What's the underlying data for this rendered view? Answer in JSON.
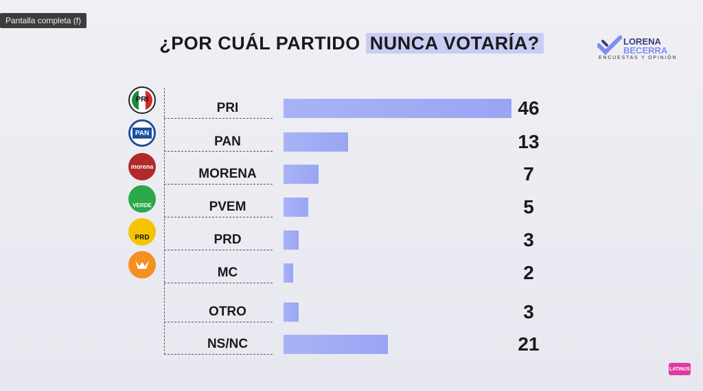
{
  "tooltip": "Pantalla completa (f)",
  "title": {
    "prefix": "¿POR CUÁL PARTIDO",
    "highlight": "NUNCA VOTARÍA?"
  },
  "brand": {
    "name_line1": "LORENA",
    "name_line2": "BECERRA",
    "tagline": "ENCUESTAS Y OPINIÓN"
  },
  "logos": [
    {
      "icon": "pri-logo-icon",
      "text": "PRI"
    },
    {
      "icon": "pan-logo-icon",
      "text": "PAN"
    },
    {
      "icon": "morena-logo-icon",
      "text": "morena"
    },
    {
      "icon": "verde-logo-icon",
      "text": "VERDE"
    },
    {
      "icon": "prd-logo-icon",
      "text": "PRD"
    },
    {
      "icon": "mc-logo-icon",
      "text": ""
    }
  ],
  "watermark": "LATINUS",
  "colors": {
    "bar": "#a8b3f6",
    "highlight": "#c9cdf4"
  },
  "chart_data": {
    "type": "bar",
    "orientation": "horizontal",
    "title": "¿POR CUÁL PARTIDO NUNCA VOTARÍA?",
    "categories": [
      "PRI",
      "PAN",
      "MORENA",
      "PVEM",
      "PRD",
      "MC",
      "OTRO",
      "NS/NC"
    ],
    "values": [
      46,
      13,
      7,
      5,
      3,
      2,
      3,
      21
    ],
    "xlim": [
      0,
      46
    ]
  }
}
